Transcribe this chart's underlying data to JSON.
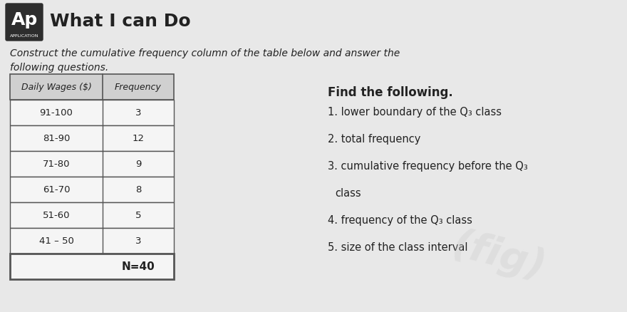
{
  "title": "What I can Do",
  "ap_label": "Ap",
  "app_label": "APPLICATION",
  "intro_line1": "Construct the cumulative frequency column of the table below and answer the",
  "intro_line2": "following questions.",
  "table_header": [
    "Daily Wages ($)",
    "Frequency"
  ],
  "table_rows": [
    [
      "91-100",
      "3"
    ],
    [
      "81-90",
      "12"
    ],
    [
      "71-80",
      "9"
    ],
    [
      "61-70",
      "8"
    ],
    [
      "51-60",
      "5"
    ],
    [
      "41 – 50",
      "3"
    ]
  ],
  "table_total": "N=40",
  "find_title": "Find the following.",
  "find_items": [
    "1. lower boundary of the Q₃ class",
    "2. total frequency",
    "3. cumulative frequency before the Q₃",
    "    class",
    "4. frequency of the Q₃ class",
    "5. size of the class interval"
  ],
  "bg_color": "#e8e8e8",
  "table_bg": "#f5f5f5",
  "header_bg": "#d0d0d0",
  "ap_box_color": "#2d2d2d",
  "ap_text_color": "#ffffff",
  "border_color": "#555555",
  "text_color": "#222222"
}
